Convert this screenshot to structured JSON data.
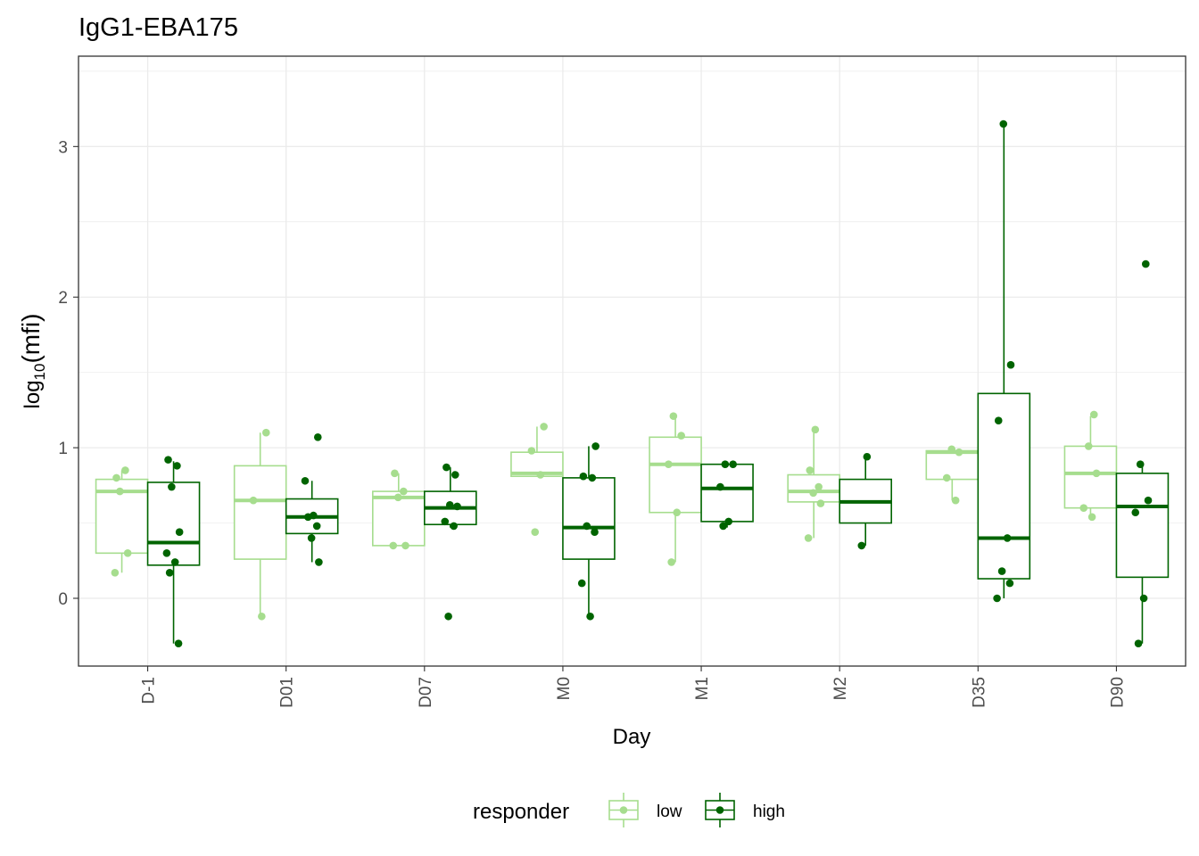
{
  "chart_data": {
    "type": "box",
    "title": "IgG1-EBA175",
    "xlabel": "Day",
    "ylabel_base": "log",
    "ylabel_sub": "10",
    "ylabel_arg": "(mfi)",
    "ylim": [
      -0.45,
      3.6
    ],
    "yticks": [
      0,
      1,
      2,
      3
    ],
    "grid": true,
    "legend_position": "bottom",
    "legend_title": "responder",
    "categories": [
      "D-1",
      "D01",
      "D07",
      "M0",
      "M1",
      "M2",
      "D35",
      "D90"
    ],
    "series": [
      {
        "name": "low",
        "color": "#a6dd8e",
        "boxes": [
          {
            "q1": 0.3,
            "median": 0.71,
            "q3": 0.79,
            "whisker_low": 0.17,
            "whisker_high": 0.85,
            "points": [
              0.8,
              0.85,
              0.71,
              0.3,
              0.17
            ]
          },
          {
            "q1": 0.26,
            "median": 0.65,
            "q3": 0.88,
            "whisker_low": -0.12,
            "whisker_high": 1.1,
            "points": [
              1.1,
              0.65,
              -0.12
            ]
          },
          {
            "q1": 0.35,
            "median": 0.67,
            "q3": 0.71,
            "whisker_low": 0.35,
            "whisker_high": 0.83,
            "points": [
              0.83,
              0.71,
              0.67,
              0.35,
              0.35
            ]
          },
          {
            "q1": 0.81,
            "median": 0.83,
            "q3": 0.97,
            "whisker_low": 0.81,
            "whisker_high": 1.14,
            "points": [
              1.14,
              0.98,
              0.82,
              0.44
            ]
          },
          {
            "q1": 0.57,
            "median": 0.89,
            "q3": 1.07,
            "whisker_low": 0.24,
            "whisker_high": 1.2,
            "points": [
              1.21,
              1.08,
              0.89,
              0.57,
              0.24
            ]
          },
          {
            "q1": 0.64,
            "median": 0.71,
            "q3": 0.82,
            "whisker_low": 0.4,
            "whisker_high": 1.12,
            "points": [
              1.12,
              0.85,
              0.74,
              0.7,
              0.63,
              0.4
            ]
          },
          {
            "q1": 0.79,
            "median": 0.97,
            "q3": 0.98,
            "whisker_low": 0.65,
            "whisker_high": 0.99,
            "points": [
              0.99,
              0.97,
              0.8,
              0.65
            ]
          },
          {
            "q1": 0.6,
            "median": 0.83,
            "q3": 1.01,
            "whisker_low": 0.54,
            "whisker_high": 1.21,
            "points": [
              1.22,
              1.01,
              0.83,
              0.6,
              0.54
            ]
          }
        ]
      },
      {
        "name": "high",
        "color": "#006400",
        "boxes": [
          {
            "q1": 0.22,
            "median": 0.37,
            "q3": 0.77,
            "whisker_low": -0.3,
            "whisker_high": 0.91,
            "points": [
              0.92,
              0.88,
              0.74,
              0.44,
              0.3,
              0.24,
              0.17,
              -0.3
            ]
          },
          {
            "q1": 0.43,
            "median": 0.54,
            "q3": 0.66,
            "whisker_low": 0.24,
            "whisker_high": 0.78,
            "points": [
              1.07,
              0.78,
              0.55,
              0.54,
              0.48,
              0.4,
              0.24
            ]
          },
          {
            "q1": 0.49,
            "median": 0.6,
            "q3": 0.71,
            "whisker_low": 0.47,
            "whisker_high": 0.87,
            "points": [
              0.87,
              0.82,
              0.62,
              0.61,
              0.51,
              0.48,
              -0.12
            ]
          },
          {
            "q1": 0.26,
            "median": 0.47,
            "q3": 0.8,
            "whisker_low": -0.12,
            "whisker_high": 1.01,
            "points": [
              1.01,
              0.81,
              0.8,
              0.48,
              0.44,
              0.1,
              -0.12
            ]
          },
          {
            "q1": 0.51,
            "median": 0.73,
            "q3": 0.89,
            "whisker_low": 0.47,
            "whisker_high": 0.89,
            "points": [
              0.89,
              0.89,
              0.74,
              0.51,
              0.48
            ]
          },
          {
            "q1": 0.5,
            "median": 0.64,
            "q3": 0.79,
            "whisker_low": 0.35,
            "whisker_high": 0.94,
            "points": [
              0.94,
              0.35
            ]
          },
          {
            "q1": 0.13,
            "median": 0.4,
            "q3": 1.36,
            "whisker_low": 0.0,
            "whisker_high": 3.14,
            "points": [
              3.15,
              1.55,
              1.18,
              0.4,
              0.18,
              0.1,
              0.0
            ]
          },
          {
            "q1": 0.14,
            "median": 0.61,
            "q3": 0.83,
            "whisker_low": -0.3,
            "whisker_high": 0.89,
            "points": [
              2.22,
              0.89,
              0.65,
              0.57,
              0.0,
              -0.3
            ]
          }
        ]
      }
    ]
  }
}
